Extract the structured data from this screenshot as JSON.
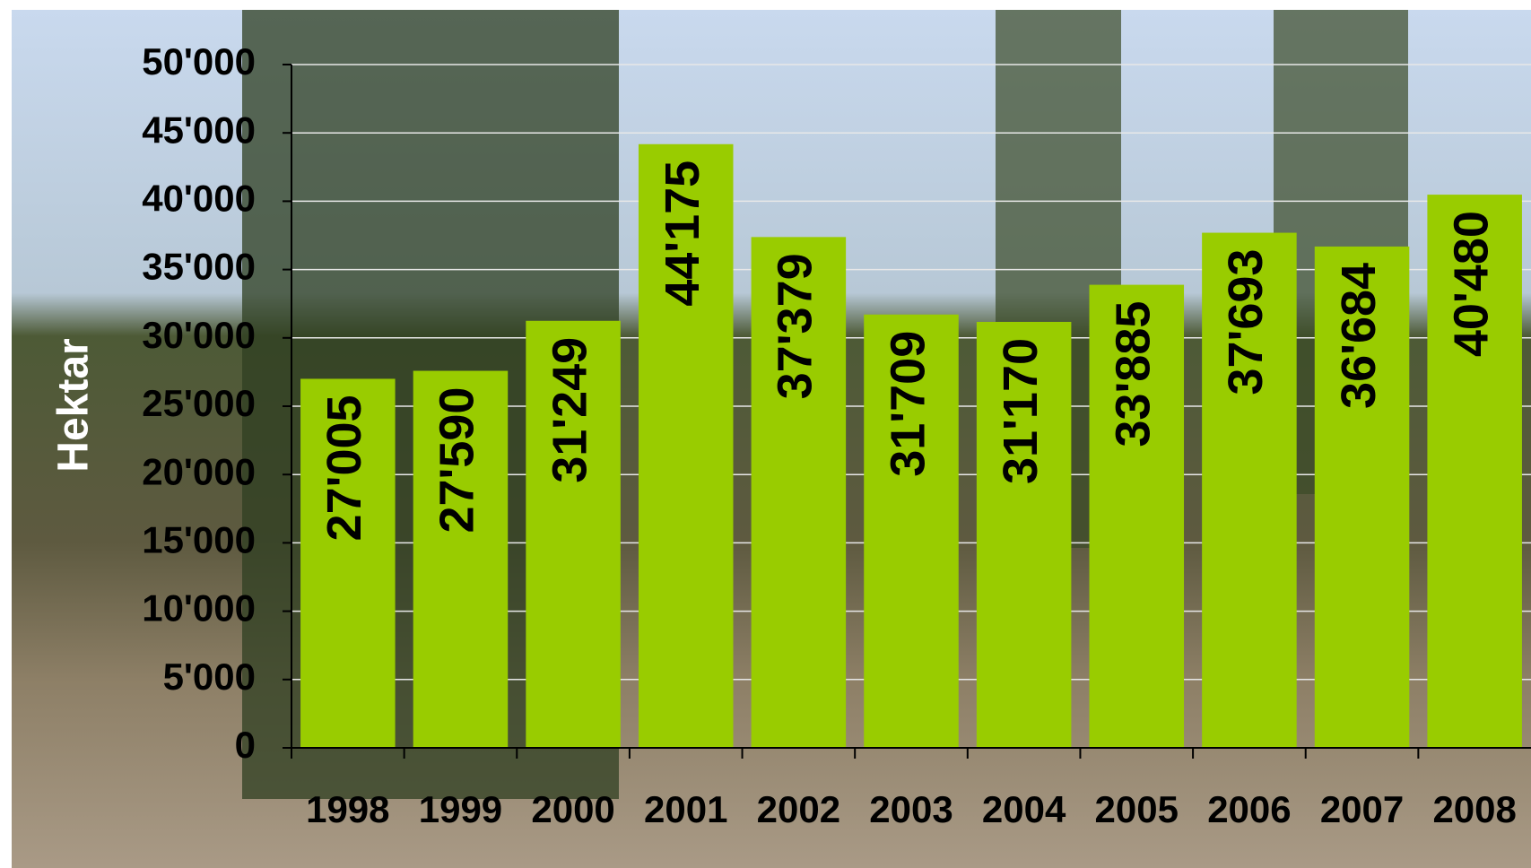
{
  "chart_data": {
    "type": "bar",
    "y_label": "Hektar",
    "categories": [
      "1998",
      "1999",
      "2000",
      "2001",
      "2002",
      "2003",
      "2004",
      "2005",
      "2006",
      "2007",
      "2008"
    ],
    "values": [
      27005,
      27590,
      31249,
      44175,
      37379,
      31709,
      31170,
      33885,
      37693,
      36684,
      40480
    ],
    "value_labels": [
      "27'005",
      "27'590",
      "31'249",
      "44'175",
      "37'379",
      "31'709",
      "31'170",
      "33'885",
      "37'693",
      "36'684",
      "40'480"
    ],
    "color": "#99cc00",
    "ylim": [
      0,
      50000
    ],
    "yticks": [
      {
        "value": 0,
        "label": "0"
      },
      {
        "value": 5000,
        "label": "5'000"
      },
      {
        "value": 10000,
        "label": "10'000"
      },
      {
        "value": 15000,
        "label": "15'000"
      },
      {
        "value": 20000,
        "label": "20'000"
      },
      {
        "value": 25000,
        "label": "25'000"
      },
      {
        "value": 30000,
        "label": "30'000"
      },
      {
        "value": 35000,
        "label": "35'000"
      },
      {
        "value": 40000,
        "label": "40'000"
      },
      {
        "value": 45000,
        "label": "45'000"
      },
      {
        "value": 50000,
        "label": "50'000"
      }
    ],
    "grid": true
  }
}
